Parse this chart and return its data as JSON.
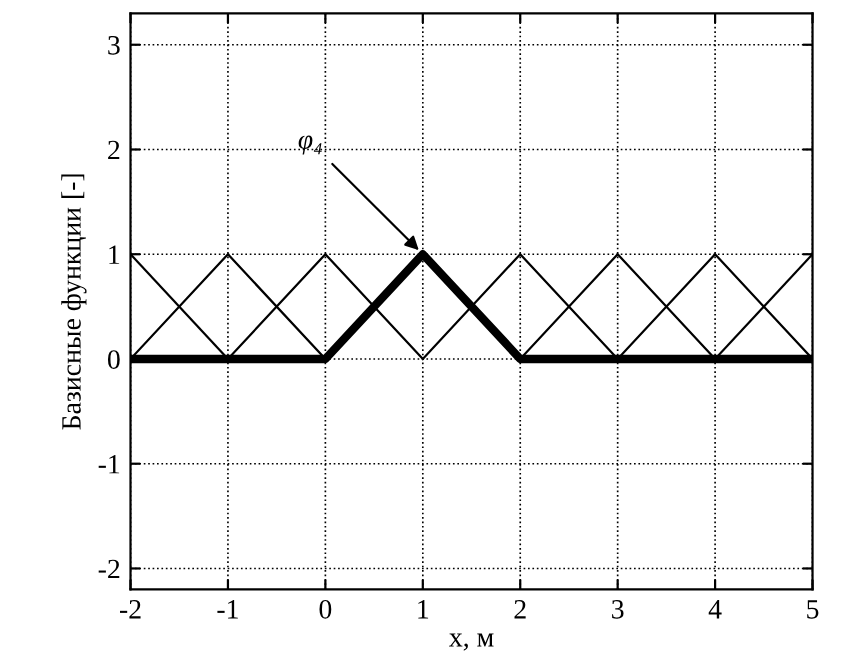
{
  "chart_data": {
    "type": "line",
    "xlabel": "x, м",
    "ylabel": "Базисные функции [-]",
    "series": [
      {
        "name": "φ₄",
        "color": "#000000",
        "x": [
          -2,
          0,
          1,
          2,
          5
        ],
        "values": [
          0,
          0,
          1,
          0,
          0
        ]
      },
      {
        "color": "#000000",
        "x": [
          -2,
          -1
        ],
        "values": [
          1,
          0
        ]
      },
      {
        "color": "#000000",
        "x": [
          -2,
          -1,
          0
        ],
        "values": [
          0,
          1,
          0
        ]
      },
      {
        "color": "#000000",
        "x": [
          -1,
          0,
          1
        ],
        "values": [
          0,
          1,
          0
        ]
      },
      {
        "color": "#000000",
        "x": [
          1,
          2,
          3
        ],
        "values": [
          0,
          1,
          0
        ]
      },
      {
        "color": "#000000",
        "x": [
          2,
          3,
          4
        ],
        "values": [
          0,
          1,
          0
        ]
      },
      {
        "color": "#000000",
        "x": [
          3,
          4,
          5
        ],
        "values": [
          0,
          1,
          0
        ]
      },
      {
        "color": "#000000",
        "x": [
          4,
          5
        ],
        "values": [
          0,
          1
        ]
      }
    ],
    "xlim": [
      -2,
      5
    ],
    "ylim": [
      -2.2,
      3.3
    ],
    "xticks": [
      -2,
      -1,
      0,
      1,
      2,
      3,
      4,
      5
    ],
    "yticks": [
      -2,
      -1,
      0,
      1,
      2,
      3
    ],
    "grid": true,
    "line_style": "solid",
    "marker": "none",
    "legend": false
  }
}
